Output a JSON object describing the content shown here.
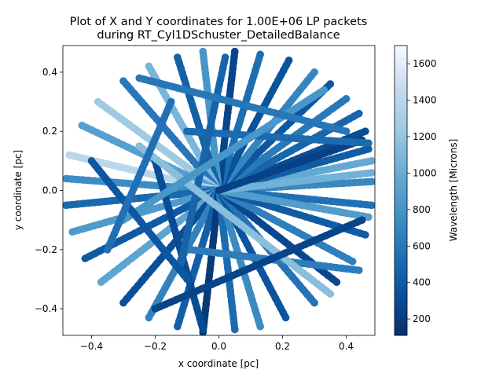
{
  "chart_data": {
    "type": "scatter",
    "title_line1": "Plot of X and Y coordinates for 1.00E+06 LP packets",
    "title_line2": "during RT_Cyl1DSchuster_DetailedBalance",
    "xlabel": "x coordinate [pc]",
    "ylabel": "y coordinate [pc]",
    "xlim": [
      -0.49,
      0.49
    ],
    "ylim": [
      -0.49,
      0.49
    ],
    "x_ticks": [
      -0.4,
      -0.2,
      0.0,
      0.2,
      0.4
    ],
    "x_tick_labels": [
      "−0.4",
      "−0.2",
      "0.0",
      "0.2",
      "0.4"
    ],
    "y_ticks": [
      -0.4,
      -0.2,
      0.0,
      0.2,
      0.4
    ],
    "y_tick_labels": [
      "−0.4",
      "−0.2",
      "0.0",
      "0.2",
      "0.4"
    ],
    "colorbar": {
      "label": "Wavelength [Microns]",
      "colormap": "Blues_r",
      "range": [
        110,
        1700
      ],
      "ticks": [
        200,
        400,
        600,
        800,
        1000,
        1200,
        1400,
        1600
      ],
      "tick_labels": [
        "200",
        "400",
        "600",
        "800",
        "1000",
        "1200",
        "1400",
        "1600"
      ],
      "colors": [
        "#08306b",
        "#08519c",
        "#2171b5",
        "#4292c6",
        "#6baed6",
        "#9ecae1",
        "#c6dbef",
        "#f7fbff"
      ]
    },
    "grid": false,
    "note": "Packet tracks are drawn as thick dotted streaks radiating from the origin toward the circular boundary r = 0.49 pc; each streak is one packet path colored by wavelength.",
    "series": [
      {
        "x0": 0.0,
        "y0": 0.0,
        "x1": 0.48,
        "y1": 0.03,
        "wavelength": 720
      },
      {
        "x0": 0.0,
        "y0": 0.0,
        "x1": 0.48,
        "y1": -0.05,
        "wavelength": 560
      },
      {
        "x0": 0.0,
        "y0": 0.0,
        "x1": 0.48,
        "y1": 0.1,
        "wavelength": 980
      },
      {
        "x0": 0.0,
        "y0": 0.0,
        "x1": 0.47,
        "y1": 0.14,
        "wavelength": 420
      },
      {
        "x0": 0.0,
        "y0": 0.0,
        "x1": 0.46,
        "y1": 0.2,
        "wavelength": 300
      },
      {
        "x0": 0.0,
        "y0": 0.0,
        "x1": 0.44,
        "y1": 0.26,
        "wavelength": 480
      },
      {
        "x0": 0.0,
        "y0": 0.0,
        "x1": 0.4,
        "y1": 0.31,
        "wavelength": 620
      },
      {
        "x0": 0.0,
        "y0": 0.0,
        "x1": 0.35,
        "y1": 0.36,
        "wavelength": 380
      },
      {
        "x0": 0.0,
        "y0": 0.0,
        "x1": 0.3,
        "y1": 0.4,
        "wavelength": 700
      },
      {
        "x0": 0.0,
        "y0": 0.0,
        "x1": 0.22,
        "y1": 0.44,
        "wavelength": 350
      },
      {
        "x0": 0.0,
        "y0": 0.0,
        "x1": 0.13,
        "y1": 0.46,
        "wavelength": 540
      },
      {
        "x0": 0.0,
        "y0": 0.0,
        "x1": 0.05,
        "y1": 0.47,
        "wavelength": 260
      },
      {
        "x0": 0.0,
        "y0": 0.0,
        "x1": -0.05,
        "y1": 0.47,
        "wavelength": 820
      },
      {
        "x0": 0.0,
        "y0": 0.0,
        "x1": -0.13,
        "y1": 0.45,
        "wavelength": 450
      },
      {
        "x0": 0.0,
        "y0": 0.0,
        "x1": -0.22,
        "y1": 0.42,
        "wavelength": 1080
      },
      {
        "x0": 0.0,
        "y0": 0.0,
        "x1": -0.3,
        "y1": 0.37,
        "wavelength": 600
      },
      {
        "x0": 0.0,
        "y0": 0.0,
        "x1": -0.38,
        "y1": 0.3,
        "wavelength": 1250
      },
      {
        "x0": 0.0,
        "y0": 0.0,
        "x1": -0.43,
        "y1": 0.22,
        "wavelength": 900
      },
      {
        "x0": 0.0,
        "y0": 0.0,
        "x1": -0.47,
        "y1": 0.12,
        "wavelength": 1400
      },
      {
        "x0": 0.0,
        "y0": 0.0,
        "x1": -0.48,
        "y1": 0.04,
        "wavelength": 760
      },
      {
        "x0": 0.0,
        "y0": 0.0,
        "x1": -0.48,
        "y1": -0.05,
        "wavelength": 500
      },
      {
        "x0": 0.0,
        "y0": 0.0,
        "x1": -0.46,
        "y1": -0.14,
        "wavelength": 860
      },
      {
        "x0": 0.0,
        "y0": 0.0,
        "x1": -0.42,
        "y1": -0.23,
        "wavelength": 400
      },
      {
        "x0": 0.0,
        "y0": 0.0,
        "x1": -0.37,
        "y1": -0.31,
        "wavelength": 940
      },
      {
        "x0": 0.0,
        "y0": 0.0,
        "x1": -0.3,
        "y1": -0.38,
        "wavelength": 320
      },
      {
        "x0": 0.0,
        "y0": 0.0,
        "x1": -0.22,
        "y1": -0.43,
        "wavelength": 680
      },
      {
        "x0": 0.0,
        "y0": 0.0,
        "x1": -0.13,
        "y1": -0.46,
        "wavelength": 440
      },
      {
        "x0": 0.0,
        "y0": 0.0,
        "x1": -0.05,
        "y1": -0.48,
        "wavelength": 180
      },
      {
        "x0": 0.0,
        "y0": 0.0,
        "x1": 0.05,
        "y1": -0.47,
        "wavelength": 520
      },
      {
        "x0": 0.0,
        "y0": 0.0,
        "x1": 0.13,
        "y1": -0.46,
        "wavelength": 740
      },
      {
        "x0": 0.0,
        "y0": 0.0,
        "x1": 0.21,
        "y1": -0.43,
        "wavelength": 360
      },
      {
        "x0": 0.0,
        "y0": 0.0,
        "x1": 0.3,
        "y1": -0.38,
        "wavelength": 580
      },
      {
        "x0": 0.0,
        "y0": 0.0,
        "x1": 0.37,
        "y1": -0.31,
        "wavelength": 270
      },
      {
        "x0": 0.0,
        "y0": 0.0,
        "x1": 0.42,
        "y1": -0.24,
        "wavelength": 660
      },
      {
        "x0": 0.0,
        "y0": 0.0,
        "x1": 0.46,
        "y1": -0.15,
        "wavelength": 410
      },
      {
        "x0": 0.0,
        "y0": 0.0,
        "x1": 0.47,
        "y1": -0.09,
        "wavelength": 880
      },
      {
        "x0": 0.0,
        "y0": 0.0,
        "x1": 0.48,
        "y1": 0.06,
        "wavelength": 1050
      },
      {
        "x0": 0.0,
        "y0": 0.0,
        "x1": 0.45,
        "y1": 0.17,
        "wavelength": 230
      },
      {
        "x0": -0.1,
        "y0": 0.2,
        "x1": 0.47,
        "y1": 0.16,
        "wavelength": 520
      },
      {
        "x0": -0.09,
        "y0": -0.2,
        "x1": 0.44,
        "y1": -0.27,
        "wavelength": 640
      },
      {
        "x0": -0.2,
        "y0": 0.1,
        "x1": -0.05,
        "y1": -0.47,
        "wavelength": 300
      },
      {
        "x0": -0.12,
        "y0": -0.25,
        "x1": 0.02,
        "y1": 0.45,
        "wavelength": 470
      },
      {
        "x0": -0.25,
        "y0": 0.15,
        "x1": 0.35,
        "y1": -0.35,
        "wavelength": 1150
      },
      {
        "x0": -0.3,
        "y0": -0.1,
        "x1": 0.33,
        "y1": 0.34,
        "wavelength": 830
      },
      {
        "x0": -0.4,
        "y0": 0.1,
        "x1": -0.1,
        "y1": -0.3,
        "wavelength": 380
      },
      {
        "x0": -0.35,
        "y0": -0.2,
        "x1": -0.15,
        "y1": 0.3,
        "wavelength": 560
      },
      {
        "x0": -0.2,
        "y0": -0.4,
        "x1": 0.45,
        "y1": -0.1,
        "wavelength": 250
      },
      {
        "x0": -0.25,
        "y0": 0.38,
        "x1": 0.4,
        "y1": 0.2,
        "wavelength": 600
      }
    ]
  }
}
